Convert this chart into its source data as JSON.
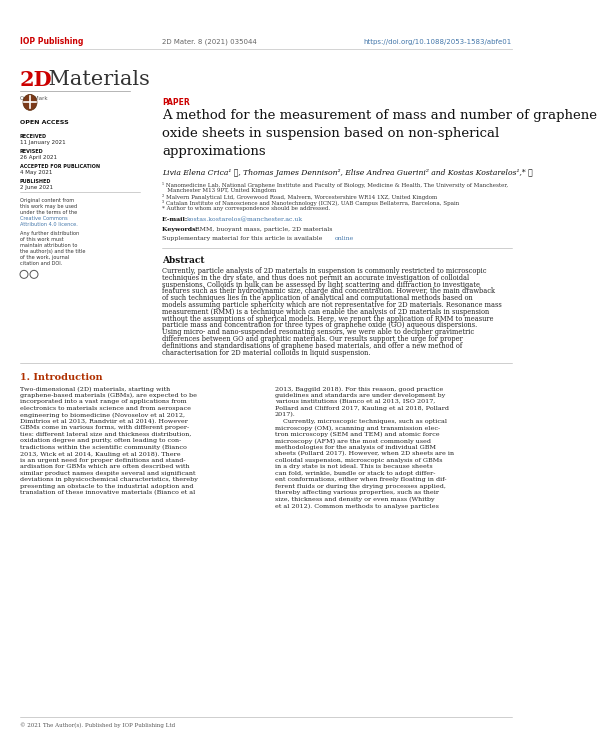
{
  "background_color": "#ffffff",
  "header_left": "IOP Publishing",
  "header_journal": "2D Mater. 8 (2021) 035044",
  "header_doi": "https://doi.org/10.1088/2053-1583/abfe01",
  "journal_title_bold": "2D",
  "journal_title_rest": " Materials",
  "paper_label": "PAPER",
  "article_title_line1": "A method for the measurement of mass and number of graphene",
  "article_title_line2": "oxide sheets in suspension based on non-spherical",
  "article_title_line3": "approximations",
  "open_access_label": "OPEN ACCESS",
  "received_label": "RECEIVED",
  "received_date": "11 January 2021",
  "revised_label": "REVISED",
  "revised_date": "26 April 2021",
  "accepted_label": "ACCEPTED FOR PUBLICATION",
  "accepted_date": "4 May 2021",
  "published_label": "PUBLISHED",
  "published_date": "2 June 2021",
  "original_content_1": "Original content from",
  "original_content_2": "this work may be used",
  "original_content_3": "under the terms of the",
  "cc_link": "Creative Commons",
  "cc_link2": "Attribution 4.0 licence.",
  "original_content_4": "",
  "original_content_5": "Any further distribution",
  "original_content_6": "of this work must",
  "original_content_7": "maintain attribution to",
  "original_content_8": "the author(s) and the title",
  "original_content_9": "of the work, journal",
  "original_content_10": "citation and DOI.",
  "authors_line": "Livia Elena Crica¹ ⓨ, Thomas James Dennison², Elise Andrea Guerini² and Kostas Kostarelos¹,* ⓨ",
  "affil1": "¹ Nanomedicine Lab, National Graphene Institute and Faculty of Biology, Medicine & Health, The University of Manchester,",
  "affil1b": "   Manchester M13 9PT, United Kingdom",
  "affil2": "² Malvern Panalytical Ltd, Grovewood Road, Malvern, Worcestershire WR14 1XZ, United Kingdom",
  "affil3": "³ Catalan Institute of Nanoscience and Nanotechnology (ICN2), UAB Campus Bellaterra, Barcelona, Spain",
  "affil4": "* Author to whom any correspondence should be addressed.",
  "email_label": "E-mail: ",
  "email": "kostas.kostarelos@manchester.ac.uk",
  "keywords_label": "Keywords: ",
  "keywords": "RMM, buoyant mass, particle, 2D materials",
  "supplementary": "Supplementary material for this article is available ",
  "supplementary_link": "online",
  "abstract_title": "Abstract",
  "abstract_text_lines": [
    "Currently, particle analysis of 2D materials in suspension is commonly restricted to microscopic",
    "techniques in the dry state, and thus does not permit an accurate investigation of colloidal",
    "suspensions. Colloids in bulk can be assessed by light scattering and diffraction to investigate",
    "features such as their hydrodynamic size, charge and concentration. However, the main drawback",
    "of such techniques lies in the application of analytical and computational methods based on",
    "models assuming particle sphericity which are not representative for 2D materials. Resonance mass",
    "measurement (RMM) is a technique which can enable the analysis of 2D materials in suspension",
    "without the assumptions of spherical models. Here, we report the application of RMM to measure",
    "particle mass and concentration for three types of graphene oxide (GO) aqueous dispersions.",
    "Using micro- and nano-suspended resonating sensors, we were able to decipher gravimetric",
    "differences between GO and graphitic materials. Our results support the urge for proper",
    "definitions and standardisations of graphene based materials, and offer a new method of",
    "characterisation for 2D material colloids in liquid suspension."
  ],
  "intro_title": "1. Introduction",
  "intro_col1_lines": [
    "Two-dimensional (2D) materials, starting with",
    "graphene-based materials (GBMs), are expected to be",
    "incorporated into a vast range of applications from",
    "electronics to materials science and from aerospace",
    "engineering to biomedicine (Novoselov et al 2012,",
    "Dimitrios et al 2013, Randviir et al 2014). However",
    "GBMs come in various forms, with different proper-",
    "ties: different lateral size and thickness distribution,",
    "oxidation degree and purity, often leading to con-",
    "tradictions within the scientific community (Bianco",
    "2013, Wick et al 2014, Kauling et al 2018). There",
    "is an urgent need for proper definitions and stand-",
    "ardisation for GBMs which are often described with",
    "similar product names despite several and significant",
    "deviations in physicochemical characteristics, thereby",
    "presenting an obstacle to the industrial adoption and",
    "translation of these innovative materials (Bianco et al"
  ],
  "intro_col2_lines": [
    "2013, Baggild 2018). For this reason, good practice",
    "guidelines and standards are under development by",
    "various institutions (Bianco et al 2013, ISO 2017,",
    "Pollard and Clifford 2017, Kauling et al 2018, Pollard",
    "2017).",
    "    Currently, microscopic techniques, such as optical",
    "microscopy (OM), scanning and transmission elec-",
    "tron microscopy (SEM and TEM) and atomic force",
    "microscopy (AFM) are the most commonly used",
    "methodologies for the analysis of individual GBM",
    "sheets (Pollard 2017). However, when 2D sheets are in",
    "colloidal suspension, microscopic analysis of GBMs",
    "in a dry state is not ideal. This is because sheets",
    "can fold, wrinkle, bundle or stack to adopt differ-",
    "ent conformations, either when freely floating in dif-",
    "ferent fluids or during the drying processes applied,",
    "thereby affecting various properties, such as their",
    "size, thickness and density or even mass (Whitby",
    "et al 2012). Common methods to analyse particles"
  ],
  "footer": "© 2021 The Author(s). Published by IOP Publishing Ltd",
  "iop_color": "#cc0000",
  "link_color": "#4477aa",
  "section_title_color": "#b03000",
  "paper_label_color": "#cc0000",
  "text_color": "#222222",
  "light_text": "#555555",
  "small_text": "#333333"
}
